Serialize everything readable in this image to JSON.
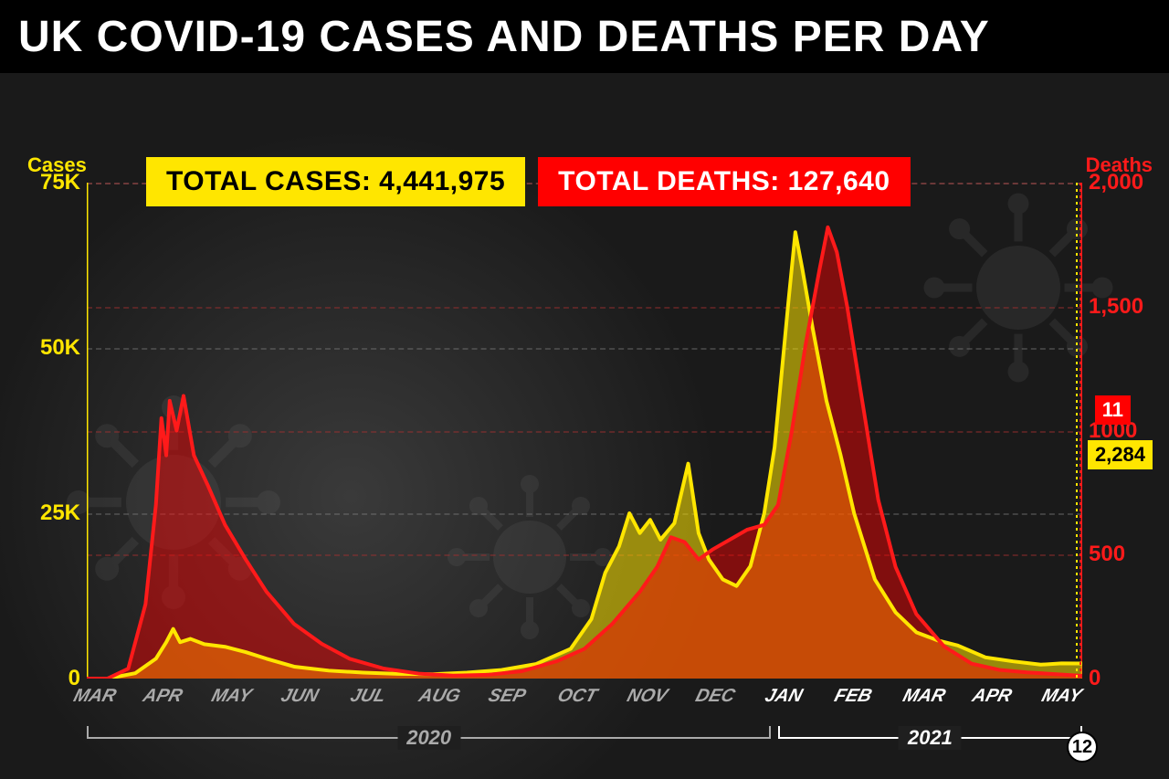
{
  "title": "UK COVID-19 CASES AND DEATHS PER DAY",
  "totals": {
    "cases_label": "TOTAL CASES: 4,441,975",
    "deaths_label": "TOTAL DEATHS: 127,640"
  },
  "axis_labels": {
    "left": "Cases",
    "right": "Deaths"
  },
  "colors": {
    "cases": "#ffe600",
    "deaths": "#ff1a1a",
    "cases_fill": "rgba(255,230,0,0.55)",
    "deaths_fill": "rgba(255,0,0,0.45)",
    "title_bg": "#000000",
    "title_fg": "#ffffff",
    "background": "#1f1f1f",
    "grid_y": "#888888",
    "grid_r": "#a03030",
    "month_gray": "#aaaaaa",
    "month_white": "#ffffff"
  },
  "chart": {
    "type": "dual-axis-area",
    "left_axis": {
      "min": 0,
      "max": 75000,
      "ticks": [
        0,
        25000,
        50000,
        75000
      ],
      "tick_labels": [
        "0",
        "25K",
        "50K",
        "75K"
      ]
    },
    "right_axis": {
      "min": 0,
      "max": 2000,
      "ticks": [
        0,
        500,
        1000,
        1500,
        2000
      ],
      "tick_labels": [
        "0",
        "500",
        "1000",
        "1,500",
        "2,000"
      ]
    },
    "months": [
      "MAR",
      "APR",
      "MAY",
      "JUN",
      "JUL",
      "AUG",
      "SEP",
      "OCT",
      "NOV",
      "DEC",
      "JAN",
      "FEB",
      "MAR",
      "APR",
      "MAY"
    ],
    "month_colors": [
      "gray",
      "gray",
      "gray",
      "gray",
      "gray",
      "gray",
      "gray",
      "gray",
      "gray",
      "gray",
      "white",
      "white",
      "white",
      "white",
      "white"
    ],
    "year_spans": [
      {
        "label": "2020",
        "from": 0,
        "to": 9.9,
        "class": "gray"
      },
      {
        "label": "2021",
        "from": 10,
        "to": 14.4,
        "class": "white"
      }
    ],
    "end_date_day": "12",
    "end_labels": {
      "deaths": "11",
      "cases": "2,284"
    },
    "line_width": 4,
    "cases_series": [
      [
        0.0,
        0
      ],
      [
        0.3,
        0
      ],
      [
        0.7,
        800
      ],
      [
        1.0,
        3000
      ],
      [
        1.15,
        5500
      ],
      [
        1.25,
        7500
      ],
      [
        1.35,
        5500
      ],
      [
        1.5,
        6000
      ],
      [
        1.7,
        5200
      ],
      [
        2.0,
        4800
      ],
      [
        2.3,
        4000
      ],
      [
        2.6,
        3000
      ],
      [
        3.0,
        1800
      ],
      [
        3.5,
        1200
      ],
      [
        4.0,
        900
      ],
      [
        4.5,
        700
      ],
      [
        5.0,
        650
      ],
      [
        5.5,
        900
      ],
      [
        6.0,
        1300
      ],
      [
        6.5,
        2200
      ],
      [
        7.0,
        4500
      ],
      [
        7.3,
        9000
      ],
      [
        7.5,
        16000
      ],
      [
        7.7,
        20000
      ],
      [
        7.85,
        25000
      ],
      [
        8.0,
        22000
      ],
      [
        8.15,
        24000
      ],
      [
        8.3,
        21000
      ],
      [
        8.5,
        23500
      ],
      [
        8.7,
        32500
      ],
      [
        8.85,
        22000
      ],
      [
        9.0,
        18000
      ],
      [
        9.2,
        15000
      ],
      [
        9.4,
        14000
      ],
      [
        9.6,
        17000
      ],
      [
        9.8,
        25000
      ],
      [
        9.95,
        35000
      ],
      [
        10.05,
        46000
      ],
      [
        10.15,
        57000
      ],
      [
        10.25,
        67500
      ],
      [
        10.35,
        62000
      ],
      [
        10.5,
        53000
      ],
      [
        10.7,
        42000
      ],
      [
        10.9,
        34000
      ],
      [
        11.1,
        25000
      ],
      [
        11.4,
        15000
      ],
      [
        11.7,
        10000
      ],
      [
        12.0,
        7000
      ],
      [
        12.3,
        5800
      ],
      [
        12.6,
        5000
      ],
      [
        13.0,
        3200
      ],
      [
        13.4,
        2600
      ],
      [
        13.8,
        2100
      ],
      [
        14.1,
        2300
      ],
      [
        14.4,
        2284
      ]
    ],
    "deaths_series": [
      [
        0.0,
        0
      ],
      [
        0.3,
        0
      ],
      [
        0.6,
        40
      ],
      [
        0.85,
        300
      ],
      [
        1.0,
        700
      ],
      [
        1.08,
        1050
      ],
      [
        1.15,
        900
      ],
      [
        1.2,
        1120
      ],
      [
        1.3,
        1000
      ],
      [
        1.4,
        1140
      ],
      [
        1.55,
        900
      ],
      [
        1.75,
        780
      ],
      [
        2.0,
        620
      ],
      [
        2.3,
        480
      ],
      [
        2.6,
        350
      ],
      [
        3.0,
        220
      ],
      [
        3.4,
        140
      ],
      [
        3.8,
        80
      ],
      [
        4.3,
        40
      ],
      [
        4.8,
        20
      ],
      [
        5.3,
        12
      ],
      [
        5.8,
        15
      ],
      [
        6.3,
        30
      ],
      [
        6.8,
        70
      ],
      [
        7.2,
        120
      ],
      [
        7.6,
        220
      ],
      [
        8.0,
        350
      ],
      [
        8.25,
        450
      ],
      [
        8.45,
        570
      ],
      [
        8.65,
        550
      ],
      [
        8.85,
        480
      ],
      [
        9.05,
        520
      ],
      [
        9.3,
        560
      ],
      [
        9.55,
        600
      ],
      [
        9.8,
        620
      ],
      [
        10.0,
        700
      ],
      [
        10.2,
        1000
      ],
      [
        10.4,
        1350
      ],
      [
        10.6,
        1650
      ],
      [
        10.72,
        1820
      ],
      [
        10.85,
        1720
      ],
      [
        11.0,
        1500
      ],
      [
        11.2,
        1150
      ],
      [
        11.45,
        720
      ],
      [
        11.7,
        450
      ],
      [
        12.0,
        260
      ],
      [
        12.4,
        130
      ],
      [
        12.8,
        60
      ],
      [
        13.2,
        35
      ],
      [
        13.6,
        25
      ],
      [
        14.0,
        18
      ],
      [
        14.4,
        11
      ]
    ]
  },
  "typography": {
    "title_fontsize": 48,
    "totals_fontsize": 30,
    "axis_label_fontsize": 22,
    "tick_fontsize": 24,
    "month_fontsize": 20,
    "year_fontsize": 22,
    "endlabel_fontsize": 22
  }
}
